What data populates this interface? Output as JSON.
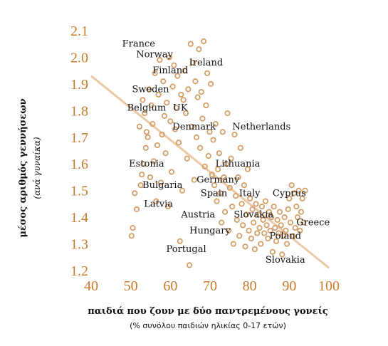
{
  "chart_data": {
    "type": "scatter",
    "xlabel": "παιδιά που ζουν με δύο παντρεμένους γονείς",
    "xlabel_sub": "(% συνόλου παιδιών ηλικίας 0-17 ετών)",
    "ylabel": "μέσος αριθμός γεννήσεων",
    "ylabel_sub": "(ανά γυναίκα)",
    "xlim": [
      40,
      100
    ],
    "ylim": [
      1.2,
      2.1
    ],
    "x_ticks": [
      "40",
      "50",
      "60",
      "70",
      "80",
      "90",
      "100"
    ],
    "y_ticks": [
      "1.2",
      "1.3",
      "1.4",
      "1.5",
      "1.6",
      "1.7",
      "1.8",
      "1.9",
      "2.0",
      "2.1"
    ],
    "marker_color": "#d4a06a",
    "trend_color": "#ecc8a4",
    "trendline": {
      "x": [
        40,
        100
      ],
      "y": [
        1.93,
        1.21
      ]
    },
    "points": [
      {
        "x": 50.2,
        "y": 1.33
      },
      {
        "x": 50.5,
        "y": 1.36
      },
      {
        "x": 51.0,
        "y": 1.49
      },
      {
        "x": 51.5,
        "y": 1.43
      },
      {
        "x": 52.2,
        "y": 1.74
      },
      {
        "x": 52.5,
        "y": 1.52
      },
      {
        "x": 52.8,
        "y": 1.56
      },
      {
        "x": 53.0,
        "y": 1.84
      },
      {
        "x": 53.2,
        "y": 1.6
      },
      {
        "x": 53.5,
        "y": 1.79
      },
      {
        "x": 53.8,
        "y": 1.66
      },
      {
        "x": 54.0,
        "y": 1.72
      },
      {
        "x": 54.3,
        "y": 1.7
      },
      {
        "x": 54.6,
        "y": 1.88
      },
      {
        "x": 54.9,
        "y": 1.55
      },
      {
        "x": 55.2,
        "y": 1.82
      },
      {
        "x": 55.5,
        "y": 1.75
      },
      {
        "x": 55.8,
        "y": 1.61
      },
      {
        "x": 56.1,
        "y": 1.94
      },
      {
        "x": 56.4,
        "y": 1.46
      },
      {
        "x": 56.7,
        "y": 1.67
      },
      {
        "x": 57.0,
        "y": 1.86
      },
      {
        "x": 57.3,
        "y": 1.99
      },
      {
        "x": 57.6,
        "y": 1.53
      },
      {
        "x": 57.9,
        "y": 1.71
      },
      {
        "x": 58.2,
        "y": 1.91
      },
      {
        "x": 58.5,
        "y": 1.78
      },
      {
        "x": 58.8,
        "y": 1.64
      },
      {
        "x": 59.1,
        "y": 1.83
      },
      {
        "x": 59.4,
        "y": 1.44
      },
      {
        "x": 59.7,
        "y": 2.0
      },
      {
        "x": 60.0,
        "y": 1.76
      },
      {
        "x": 60.3,
        "y": 1.57
      },
      {
        "x": 60.6,
        "y": 1.89
      },
      {
        "x": 60.9,
        "y": 1.97
      },
      {
        "x": 61.2,
        "y": 1.73
      },
      {
        "x": 61.5,
        "y": 1.81
      },
      {
        "x": 61.8,
        "y": 1.93
      },
      {
        "x": 62.1,
        "y": 1.68
      },
      {
        "x": 62.4,
        "y": 1.31
      },
      {
        "x": 62.7,
        "y": 1.86
      },
      {
        "x": 63.0,
        "y": 1.5
      },
      {
        "x": 63.3,
        "y": 1.84
      },
      {
        "x": 63.6,
        "y": 1.95
      },
      {
        "x": 63.9,
        "y": 1.79
      },
      {
        "x": 64.2,
        "y": 1.62
      },
      {
        "x": 64.5,
        "y": 1.88
      },
      {
        "x": 64.8,
        "y": 1.22
      },
      {
        "x": 65.1,
        "y": 2.05
      },
      {
        "x": 65.4,
        "y": 1.74
      },
      {
        "x": 65.7,
        "y": 1.98
      },
      {
        "x": 66.0,
        "y": 1.54
      },
      {
        "x": 66.3,
        "y": 1.91
      },
      {
        "x": 66.6,
        "y": 1.7
      },
      {
        "x": 66.9,
        "y": 1.85
      },
      {
        "x": 67.2,
        "y": 2.03
      },
      {
        "x": 67.5,
        "y": 1.66
      },
      {
        "x": 67.8,
        "y": 1.87
      },
      {
        "x": 68.1,
        "y": 1.77
      },
      {
        "x": 68.4,
        "y": 2.06
      },
      {
        "x": 68.7,
        "y": 1.59
      },
      {
        "x": 69.0,
        "y": 1.82
      },
      {
        "x": 69.3,
        "y": 1.94
      },
      {
        "x": 69.6,
        "y": 1.63
      },
      {
        "x": 69.9,
        "y": 1.72
      },
      {
        "x": 70.2,
        "y": 1.9
      },
      {
        "x": 70.5,
        "y": 1.56
      },
      {
        "x": 70.8,
        "y": 1.69
      },
      {
        "x": 71.1,
        "y": 1.52
      },
      {
        "x": 71.4,
        "y": 1.75
      },
      {
        "x": 71.7,
        "y": 1.46
      },
      {
        "x": 72.0,
        "y": 1.58
      },
      {
        "x": 72.3,
        "y": 1.64
      },
      {
        "x": 72.6,
        "y": 1.49
      },
      {
        "x": 72.9,
        "y": 1.38
      },
      {
        "x": 73.2,
        "y": 1.72
      },
      {
        "x": 73.5,
        "y": 1.55
      },
      {
        "x": 73.8,
        "y": 1.42
      },
      {
        "x": 74.1,
        "y": 1.6
      },
      {
        "x": 74.4,
        "y": 1.79
      },
      {
        "x": 74.7,
        "y": 1.35
      },
      {
        "x": 75.0,
        "y": 1.51
      },
      {
        "x": 75.3,
        "y": 1.62
      },
      {
        "x": 75.6,
        "y": 1.44
      },
      {
        "x": 75.9,
        "y": 1.3
      },
      {
        "x": 76.2,
        "y": 1.71
      },
      {
        "x": 76.5,
        "y": 1.48
      },
      {
        "x": 76.8,
        "y": 1.39
      },
      {
        "x": 77.1,
        "y": 1.55
      },
      {
        "x": 77.4,
        "y": 1.33
      },
      {
        "x": 77.7,
        "y": 1.66
      },
      {
        "x": 78.0,
        "y": 1.45
      },
      {
        "x": 78.3,
        "y": 1.37
      },
      {
        "x": 78.6,
        "y": 1.52
      },
      {
        "x": 78.9,
        "y": 1.29
      },
      {
        "x": 79.2,
        "y": 1.41
      },
      {
        "x": 79.5,
        "y": 1.58
      },
      {
        "x": 79.8,
        "y": 1.35
      },
      {
        "x": 80.1,
        "y": 1.47
      },
      {
        "x": 80.4,
        "y": 1.32
      },
      {
        "x": 80.7,
        "y": 1.43
      },
      {
        "x": 81.0,
        "y": 1.38
      },
      {
        "x": 81.3,
        "y": 1.28
      },
      {
        "x": 81.6,
        "y": 1.45
      },
      {
        "x": 81.9,
        "y": 1.34
      },
      {
        "x": 82.2,
        "y": 1.41
      },
      {
        "x": 82.5,
        "y": 1.36
      },
      {
        "x": 82.8,
        "y": 1.3
      },
      {
        "x": 83.1,
        "y": 1.44
      },
      {
        "x": 83.4,
        "y": 1.39
      },
      {
        "x": 83.7,
        "y": 1.34
      },
      {
        "x": 84.0,
        "y": 1.46
      },
      {
        "x": 84.3,
        "y": 1.37
      },
      {
        "x": 84.6,
        "y": 1.32
      },
      {
        "x": 84.9,
        "y": 1.42
      },
      {
        "x": 85.2,
        "y": 1.35
      },
      {
        "x": 85.5,
        "y": 1.4
      },
      {
        "x": 85.8,
        "y": 1.27
      },
      {
        "x": 86.1,
        "y": 1.44
      },
      {
        "x": 86.4,
        "y": 1.36
      },
      {
        "x": 86.7,
        "y": 1.31
      },
      {
        "x": 87.0,
        "y": 1.39
      },
      {
        "x": 87.3,
        "y": 1.34
      },
      {
        "x": 87.6,
        "y": 1.42
      },
      {
        "x": 87.9,
        "y": 1.37
      },
      {
        "x": 88.2,
        "y": 1.26
      },
      {
        "x": 88.5,
        "y": 1.33
      },
      {
        "x": 88.8,
        "y": 1.4
      },
      {
        "x": 89.1,
        "y": 1.35
      },
      {
        "x": 89.4,
        "y": 1.3
      },
      {
        "x": 89.7,
        "y": 1.43
      },
      {
        "x": 90.0,
        "y": 1.47
      },
      {
        "x": 90.3,
        "y": 1.38
      },
      {
        "x": 90.6,
        "y": 1.52
      },
      {
        "x": 90.9,
        "y": 1.33
      },
      {
        "x": 91.2,
        "y": 1.49
      },
      {
        "x": 91.5,
        "y": 1.36
      },
      {
        "x": 91.8,
        "y": 1.44
      },
      {
        "x": 92.1,
        "y": 1.4
      },
      {
        "x": 92.4,
        "y": 1.5
      },
      {
        "x": 92.7,
        "y": 1.35
      },
      {
        "x": 93.0,
        "y": 1.42
      },
      {
        "x": 93.3,
        "y": 1.47
      },
      {
        "x": 93.6,
        "y": 1.38
      },
      {
        "x": 94.0,
        "y": 1.5
      }
    ],
    "labels": [
      {
        "text": "France",
        "x": 52,
        "y": 2.05
      },
      {
        "text": "Norway",
        "x": 56,
        "y": 2.01
      },
      {
        "text": "Ireland",
        "x": 69,
        "y": 1.98
      },
      {
        "text": "Finland",
        "x": 60,
        "y": 1.95
      },
      {
        "text": "Sweden",
        "x": 55,
        "y": 1.88
      },
      {
        "text": "Belgium",
        "x": 54,
        "y": 1.81
      },
      {
        "text": "UK",
        "x": 62.5,
        "y": 1.81
      },
      {
        "text": "Denmark",
        "x": 66,
        "y": 1.74
      },
      {
        "text": "Netherlands",
        "x": 83,
        "y": 1.74
      },
      {
        "text": "Estonia",
        "x": 54,
        "y": 1.6
      },
      {
        "text": "Lithuania",
        "x": 77,
        "y": 1.6
      },
      {
        "text": "Germany",
        "x": 72,
        "y": 1.54
      },
      {
        "text": "Bulgaria",
        "x": 58,
        "y": 1.52
      },
      {
        "text": "Spain",
        "x": 71,
        "y": 1.49
      },
      {
        "text": "Italy",
        "x": 80,
        "y": 1.49
      },
      {
        "text": "Cyprus",
        "x": 90,
        "y": 1.49
      },
      {
        "text": "Latvia",
        "x": 57,
        "y": 1.45
      },
      {
        "text": "Austria",
        "x": 67,
        "y": 1.41
      },
      {
        "text": "Slovakia",
        "x": 81,
        "y": 1.41
      },
      {
        "text": "Greece",
        "x": 96,
        "y": 1.38
      },
      {
        "text": "Hungary",
        "x": 70,
        "y": 1.35
      },
      {
        "text": "Poland",
        "x": 89,
        "y": 1.33
      },
      {
        "text": "Portugal",
        "x": 64,
        "y": 1.28
      },
      {
        "text": "Slovakia",
        "x": 89,
        "y": 1.24
      }
    ]
  }
}
